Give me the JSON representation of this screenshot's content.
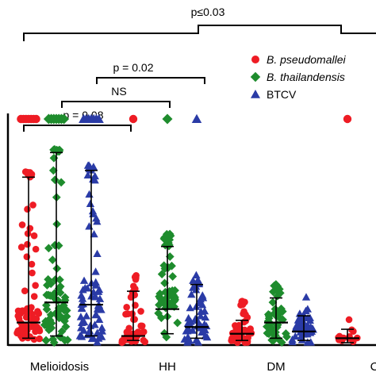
{
  "chart_data": {
    "type": "scatter",
    "categories": [
      "Melioidosis",
      "HH",
      "DM",
      "C"
    ],
    "series": [
      {
        "name": "B. pseudomallei",
        "color": "#ee1c24",
        "marker": "circle"
      },
      {
        "name": "B. thailandensis",
        "color": "#1e8c2d",
        "marker": "diamond"
      },
      {
        "name": "BTCV",
        "color": "#2a3ba6",
        "marker": "triangle"
      }
    ],
    "groups": [
      {
        "category": "Melioidosis",
        "summaries": [
          {
            "series": "B. pseudomallei",
            "median": 0.09,
            "q_low": 0.02,
            "q_high": 0.74
          },
          {
            "series": "B. thailandensis",
            "median": 0.18,
            "q_low": 0.03,
            "q_high": 0.85
          },
          {
            "series": "BTCV",
            "median": 0.17,
            "q_low": 0.03,
            "q_high": 0.77
          }
        ]
      },
      {
        "category": "HH",
        "summaries": [
          {
            "series": "B. pseudomallei",
            "median": 0.03,
            "q_low": 0.01,
            "q_high": 0.23
          },
          {
            "series": "B. thailandensis",
            "median": 0.15,
            "q_low": 0.04,
            "q_high": 0.43
          },
          {
            "series": "BTCV",
            "median": 0.07,
            "q_low": 0.02,
            "q_high": 0.26
          }
        ]
      },
      {
        "category": "DM",
        "summaries": [
          {
            "series": "B. pseudomallei",
            "median": 0.04,
            "q_low": 0.01,
            "q_high": 0.1
          },
          {
            "series": "B. thailandensis",
            "median": 0.09,
            "q_low": 0.02,
            "q_high": 0.2
          },
          {
            "series": "BTCV",
            "median": 0.05,
            "q_low": 0.01,
            "q_high": 0.12
          }
        ]
      },
      {
        "category": "C",
        "summaries": [
          {
            "series": "B. pseudomallei",
            "median": 0.02,
            "q_low": 0.0,
            "q_high": 0.06
          }
        ]
      }
    ],
    "comparisons": [
      {
        "label": "p≤0.03",
        "from": "Melioidosis",
        "to": "C"
      },
      {
        "label": "p = 0.02",
        "from": "Melioidosis",
        "to": "HH"
      },
      {
        "label": "NS",
        "from": "Melioidosis",
        "to": "HH"
      },
      {
        "label": "p = 0.08",
        "from": "Melioidosis",
        "to": "HH"
      }
    ],
    "legend_position": "top-right",
    "xlabel": "",
    "ylabel": ""
  }
}
